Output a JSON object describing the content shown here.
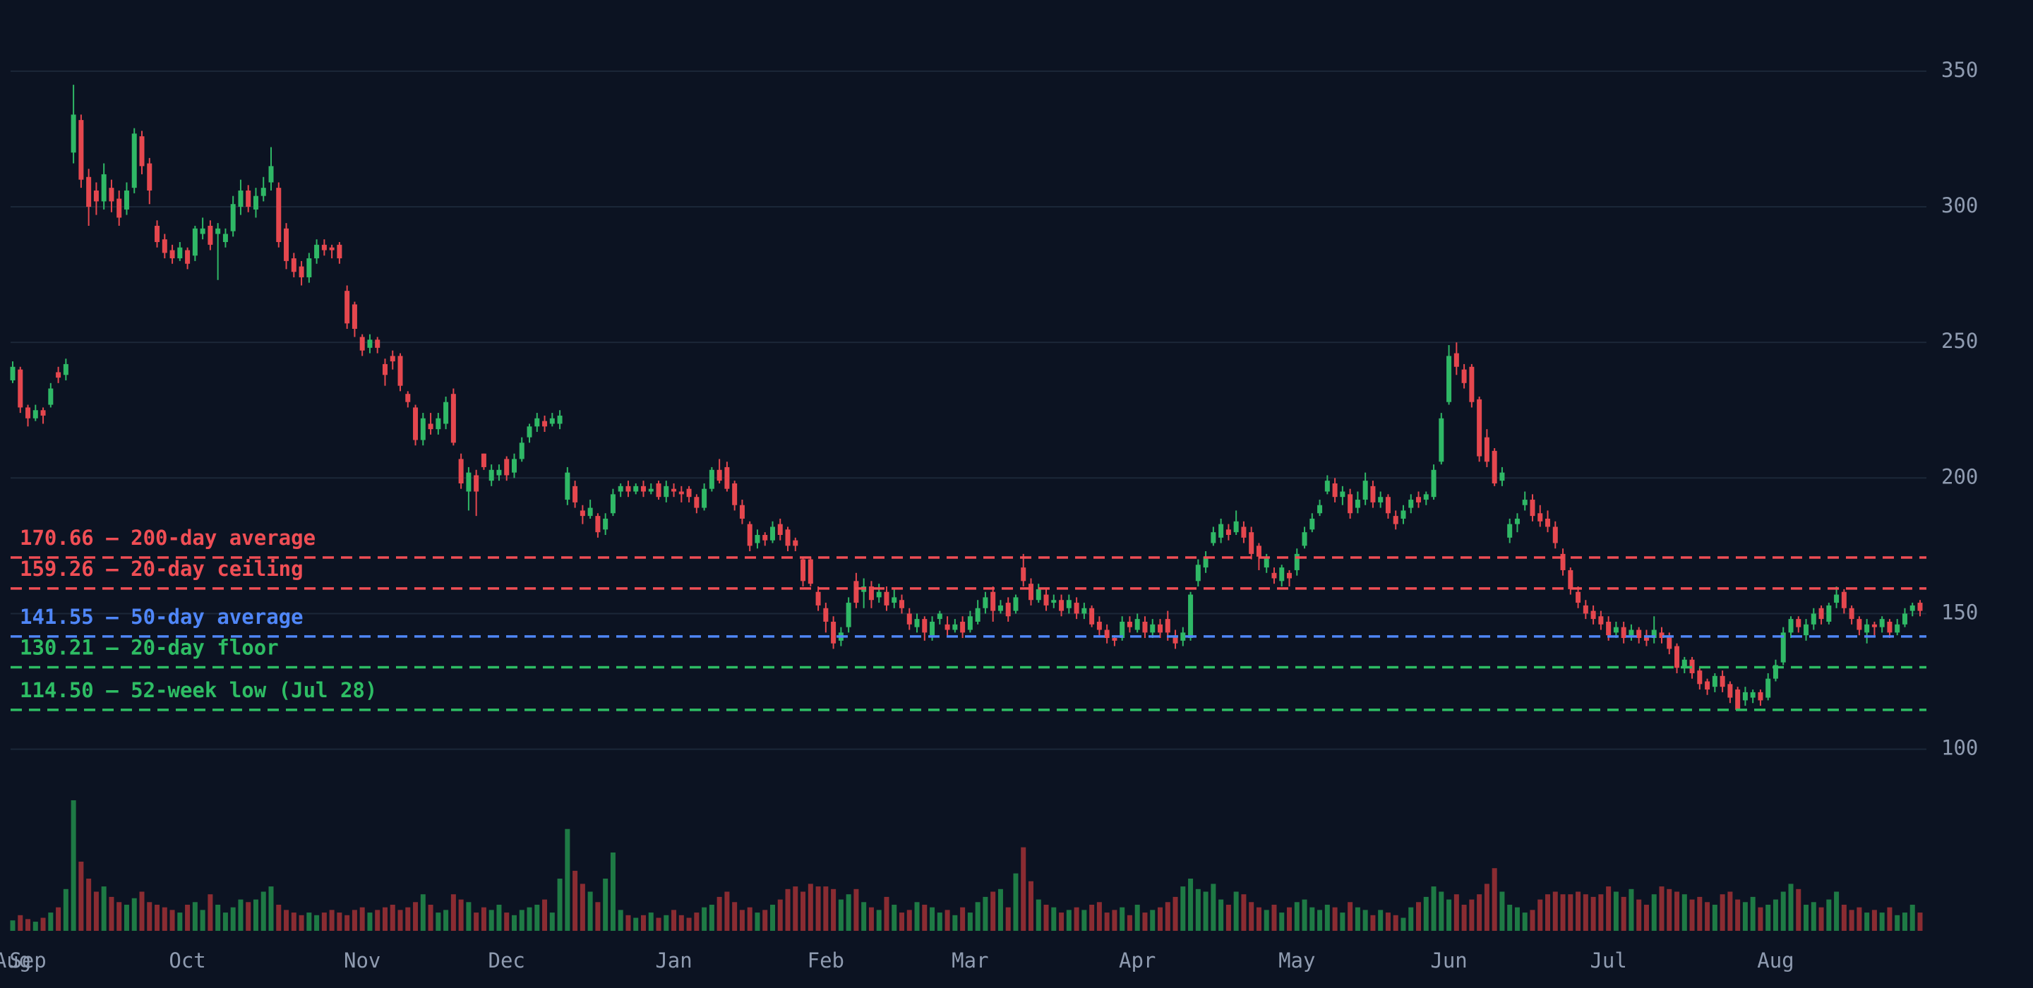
{
  "chart_data": {
    "type": "candlestick",
    "categories": [
      "Aug",
      null,
      "Sep",
      null,
      null,
      null,
      null,
      null,
      null,
      null,
      null,
      null,
      null,
      null,
      null,
      null,
      null,
      null,
      null,
      null,
      null,
      null,
      null,
      "Oct",
      null,
      null,
      null,
      null,
      null,
      null,
      null,
      null,
      null,
      null,
      null,
      null,
      null,
      null,
      null,
      null,
      null,
      null,
      null,
      null,
      null,
      null,
      "Nov",
      null,
      null,
      null,
      null,
      null,
      null,
      null,
      null,
      null,
      null,
      null,
      null,
      null,
      null,
      null,
      null,
      null,
      null,
      "Dec",
      null,
      null,
      null,
      null,
      null,
      null,
      null,
      null,
      null,
      null,
      null,
      null,
      null,
      null,
      null,
      null,
      null,
      null,
      null,
      null,
      null,
      "Jan",
      null,
      null,
      null,
      null,
      null,
      null,
      null,
      null,
      null,
      null,
      null,
      null,
      null,
      null,
      null,
      null,
      null,
      null,
      null,
      "Feb",
      null,
      null,
      null,
      null,
      null,
      null,
      null,
      null,
      null,
      null,
      null,
      null,
      null,
      null,
      null,
      null,
      null,
      null,
      "Mar",
      null,
      null,
      null,
      null,
      null,
      null,
      null,
      null,
      null,
      null,
      null,
      null,
      null,
      null,
      null,
      null,
      null,
      null,
      null,
      null,
      null,
      "Apr",
      null,
      null,
      null,
      null,
      null,
      null,
      null,
      null,
      null,
      null,
      null,
      null,
      null,
      null,
      null,
      null,
      null,
      null,
      null,
      null,
      "May",
      null,
      null,
      null,
      null,
      null,
      null,
      null,
      null,
      null,
      null,
      null,
      null,
      null,
      null,
      null,
      null,
      null,
      null,
      null,
      "Jun",
      null,
      null,
      null,
      null,
      null,
      null,
      null,
      null,
      null,
      null,
      null,
      null,
      null,
      null,
      null,
      null,
      null,
      null,
      null,
      null,
      "Jul",
      null,
      null,
      null,
      null,
      null,
      null,
      null,
      null,
      null,
      null,
      null,
      null,
      null,
      null,
      null,
      null,
      null,
      null,
      null,
      null,
      null,
      "Aug",
      null,
      null,
      null,
      null,
      null,
      null,
      null,
      null,
      null,
      null,
      null,
      null,
      null,
      null,
      null,
      null,
      null,
      null,
      null
    ],
    "open": [
      236,
      240,
      226,
      222,
      225,
      227,
      239,
      238,
      320,
      332,
      311,
      306,
      302,
      307,
      303,
      299,
      307,
      326,
      316,
      293,
      288,
      284,
      281,
      284,
      282,
      290,
      293,
      290,
      287,
      291,
      300,
      306,
      299,
      304,
      309,
      307,
      292,
      281,
      278,
      274,
      281,
      286,
      285,
      286,
      269,
      264,
      252,
      248,
      251,
      242,
      245,
      245,
      231,
      226,
      214,
      220,
      218,
      220,
      231,
      207,
      195,
      201,
      209,
      199,
      201,
      207,
      202,
      207,
      215,
      219,
      221,
      220,
      220,
      192,
      197,
      188,
      186,
      186,
      181,
      187,
      195,
      197,
      195,
      197,
      195,
      198,
      193,
      196,
      195,
      196,
      193,
      189,
      196,
      203,
      204,
      198,
      190,
      183,
      176,
      179,
      177,
      183,
      181,
      177,
      170,
      170,
      158,
      152,
      147,
      140,
      145,
      162,
      158,
      160,
      156,
      158,
      154,
      155,
      150,
      145,
      148,
      142,
      148,
      146,
      144,
      147,
      144,
      147,
      152,
      158,
      151,
      154,
      151,
      167,
      161,
      155,
      157,
      154,
      155,
      152,
      154,
      150,
      152,
      147,
      144,
      141,
      141,
      147,
      144,
      147,
      143,
      146,
      148,
      142,
      140,
      141,
      162,
      167,
      176,
      178,
      181,
      180,
      182,
      180,
      175,
      167,
      165,
      162,
      165,
      166,
      175,
      181,
      187,
      195,
      198,
      193,
      194,
      189,
      192,
      197,
      191,
      193,
      186,
      185,
      189,
      193,
      192,
      193,
      206,
      228,
      246,
      240,
      241,
      229,
      215,
      210,
      199,
      178,
      183,
      190,
      192,
      187,
      185,
      182,
      172,
      166,
      158,
      153,
      151,
      149,
      147,
      143,
      145,
      142,
      144,
      142,
      141,
      143,
      142,
      138,
      130,
      133,
      129,
      125,
      123,
      127,
      124,
      122,
      118,
      119,
      121,
      119,
      126,
      132,
      143,
      148,
      142,
      146,
      152,
      147,
      154,
      158,
      152,
      148,
      143,
      146,
      145,
      147,
      143,
      146,
      151,
      154
    ],
    "high": [
      243,
      241,
      227,
      227,
      226,
      235,
      241,
      244,
      345,
      334,
      314,
      309,
      316,
      310,
      306,
      309,
      329,
      328,
      318,
      295,
      290,
      286,
      287,
      285,
      293,
      296,
      295,
      294,
      292,
      304,
      310,
      308,
      307,
      311,
      322,
      309,
      294,
      283,
      280,
      283,
      288,
      288,
      286,
      287,
      271,
      265,
      253,
      253,
      252,
      244,
      247,
      246,
      232,
      227,
      224,
      224,
      224,
      230,
      233,
      209,
      204,
      203,
      209,
      205,
      205,
      208,
      209,
      215,
      220,
      224,
      223,
      224,
      225,
      204,
      199,
      190,
      192,
      187,
      187,
      196,
      198,
      199,
      198,
      199,
      198,
      199,
      199,
      198,
      197,
      197,
      194,
      198,
      204,
      207,
      206,
      199,
      192,
      184,
      181,
      180,
      184,
      185,
      182,
      178,
      171,
      171,
      160,
      154,
      149,
      145,
      156,
      165,
      163,
      162,
      161,
      160,
      159,
      157,
      152,
      150,
      149,
      149,
      151,
      149,
      148,
      149,
      151,
      155,
      158,
      160,
      155,
      156,
      157,
      172,
      163,
      161,
      159,
      157,
      157,
      157,
      156,
      154,
      153,
      149,
      146,
      142,
      149,
      149,
      150,
      149,
      148,
      148,
      151,
      144,
      145,
      158,
      170,
      173,
      182,
      185,
      183,
      188,
      184,
      182,
      176,
      172,
      167,
      168,
      166,
      174,
      182,
      187,
      192,
      201,
      200,
      197,
      196,
      195,
      202,
      199,
      195,
      194,
      188,
      190,
      194,
      195,
      195,
      205,
      224,
      249,
      250,
      242,
      242,
      230,
      218,
      211,
      204,
      185,
      187,
      195,
      194,
      190,
      188,
      184,
      174,
      167,
      160,
      155,
      153,
      151,
      149,
      147,
      147,
      146,
      145,
      144,
      149,
      145,
      143,
      139,
      134,
      134,
      130,
      126,
      128,
      129,
      125,
      123,
      123,
      122,
      122,
      128,
      133,
      145,
      149,
      149,
      148,
      152,
      153,
      154,
      160,
      159,
      153,
      149,
      148,
      147,
      149,
      148,
      148,
      152,
      154,
      155
    ],
    "low": [
      235,
      224,
      219,
      221,
      220,
      226,
      235,
      236,
      316,
      307,
      293,
      297,
      299,
      298,
      293,
      297,
      305,
      312,
      301,
      285,
      281,
      279,
      280,
      277,
      280,
      288,
      284,
      273,
      285,
      289,
      297,
      298,
      296,
      302,
      306,
      285,
      277,
      274,
      271,
      272,
      279,
      282,
      281,
      279,
      255,
      252,
      245,
      246,
      246,
      234,
      240,
      232,
      226,
      212,
      212,
      216,
      216,
      218,
      212,
      196,
      188,
      186,
      203,
      197,
      199,
      199,
      200,
      206,
      213,
      217,
      217,
      219,
      218,
      190,
      189,
      183,
      185,
      178,
      179,
      186,
      193,
      193,
      194,
      193,
      194,
      192,
      191,
      193,
      191,
      191,
      187,
      188,
      195,
      198,
      195,
      188,
      183,
      173,
      174,
      175,
      176,
      177,
      173,
      173,
      160,
      160,
      151,
      143,
      137,
      138,
      143,
      152,
      152,
      152,
      154,
      151,
      152,
      150,
      144,
      143,
      140,
      140,
      146,
      142,
      143,
      141,
      143,
      146,
      150,
      147,
      150,
      147,
      150,
      160,
      153,
      154,
      151,
      152,
      149,
      150,
      148,
      148,
      145,
      142,
      139,
      138,
      140,
      143,
      143,
      141,
      141,
      141,
      140,
      137,
      138,
      140,
      160,
      165,
      175,
      176,
      177,
      179,
      176,
      170,
      166,
      165,
      161,
      160,
      160,
      164,
      174,
      180,
      186,
      194,
      191,
      190,
      185,
      187,
      190,
      189,
      189,
      185,
      181,
      183,
      187,
      189,
      190,
      192,
      205,
      227,
      238,
      233,
      226,
      206,
      204,
      197,
      197,
      176,
      180,
      188,
      184,
      182,
      180,
      174,
      164,
      157,
      152,
      148,
      146,
      144,
      140,
      141,
      139,
      140,
      139,
      138,
      139,
      139,
      135,
      128,
      128,
      126,
      122,
      120,
      121,
      121,
      117,
      114.5,
      116,
      117,
      116,
      118,
      125,
      131,
      141,
      143,
      140,
      144,
      146,
      146,
      152,
      150,
      146,
      142,
      139,
      142,
      143,
      141,
      142,
      145,
      149,
      149
    ],
    "close": [
      241,
      226,
      222,
      225,
      223,
      233,
      237,
      242,
      334,
      310,
      300,
      302,
      312,
      302,
      296,
      306,
      327,
      315,
      306,
      287,
      283,
      281,
      285,
      279,
      292,
      292,
      286,
      292,
      290,
      301,
      306,
      300,
      304,
      307,
      315,
      287,
      280,
      276,
      274,
      281,
      286,
      284,
      284,
      281,
      257,
      255,
      247,
      251,
      248,
      238,
      243,
      234,
      228,
      214,
      222,
      218,
      222,
      228,
      213,
      198,
      202,
      195,
      204,
      203,
      203,
      201,
      207,
      213,
      219,
      222,
      219,
      222,
      223,
      202,
      191,
      186,
      189,
      180,
      185,
      194,
      197,
      195,
      197,
      195,
      196,
      193,
      197,
      195,
      194,
      193,
      189,
      196,
      203,
      199,
      196,
      190,
      185,
      175,
      179,
      177,
      182,
      179,
      175,
      175,
      162,
      161,
      153,
      147,
      139,
      143,
      154,
      154,
      160,
      155,
      158,
      153,
      156,
      152,
      146,
      148,
      143,
      147,
      150,
      144,
      146,
      143,
      149,
      152,
      156,
      151,
      153,
      149,
      156,
      162,
      155,
      159,
      153,
      155,
      151,
      155,
      150,
      152,
      146,
      144,
      141,
      140,
      147,
      145,
      148,
      143,
      146,
      143,
      143,
      139,
      143,
      157,
      168,
      171,
      180,
      183,
      179,
      184,
      178,
      172,
      171,
      171,
      163,
      167,
      163,
      172,
      180,
      185,
      190,
      199,
      193,
      195,
      187,
      192,
      199,
      191,
      193,
      187,
      183,
      188,
      192,
      191,
      194,
      203,
      222,
      245,
      241,
      235,
      228,
      208,
      206,
      198,
      202,
      183,
      185,
      192,
      186,
      184,
      182,
      176,
      166,
      159,
      154,
      150,
      148,
      146,
      142,
      145,
      141,
      144,
      141,
      140,
      144,
      141,
      137,
      130,
      133,
      128,
      124,
      122,
      127,
      123,
      119,
      114.5,
      121,
      121,
      118,
      126,
      131,
      143,
      148,
      145,
      146,
      150,
      148,
      153,
      157,
      152,
      148,
      144,
      146,
      145,
      148,
      143,
      146,
      150,
      153,
      151
    ],
    "volume": [
      8,
      12,
      9,
      7,
      10,
      14,
      18,
      32,
      100,
      53,
      40,
      30,
      34,
      26,
      22,
      20,
      25,
      30,
      22,
      20,
      18,
      16,
      14,
      20,
      22,
      16,
      28,
      20,
      14,
      18,
      24,
      22,
      24,
      30,
      34,
      20,
      16,
      14,
      12,
      14,
      12,
      14,
      16,
      14,
      12,
      16,
      18,
      14,
      16,
      18,
      20,
      16,
      18,
      22,
      28,
      20,
      14,
      16,
      28,
      24,
      22,
      14,
      18,
      16,
      20,
      14,
      12,
      16,
      18,
      20,
      24,
      14,
      40,
      78,
      46,
      36,
      30,
      22,
      40,
      60,
      16,
      12,
      10,
      12,
      14,
      10,
      12,
      16,
      12,
      10,
      14,
      18,
      20,
      26,
      30,
      22,
      16,
      18,
      14,
      16,
      20,
      24,
      32,
      34,
      30,
      36,
      34,
      34,
      32,
      24,
      28,
      32,
      22,
      18,
      16,
      26,
      20,
      14,
      16,
      22,
      20,
      18,
      14,
      16,
      12,
      18,
      14,
      22,
      26,
      30,
      32,
      18,
      44,
      64,
      38,
      24,
      20,
      18,
      14,
      16,
      18,
      16,
      20,
      22,
      14,
      16,
      18,
      12,
      20,
      14,
      16,
      18,
      22,
      26,
      34,
      40,
      32,
      30,
      36,
      24,
      20,
      30,
      28,
      22,
      18,
      16,
      20,
      14,
      18,
      22,
      24,
      18,
      16,
      20,
      18,
      14,
      22,
      18,
      16,
      12,
      16,
      14,
      12,
      10,
      18,
      22,
      26,
      34,
      30,
      24,
      28,
      20,
      24,
      28,
      36,
      48,
      30,
      20,
      18,
      14,
      16,
      24,
      28,
      30,
      28,
      28,
      30,
      28,
      26,
      28,
      34,
      30,
      26,
      32,
      24,
      20,
      28,
      34,
      32,
      30,
      28,
      24,
      26,
      22,
      20,
      28,
      30,
      24,
      22,
      26,
      18,
      20,
      24,
      30,
      36,
      32,
      20,
      22,
      18,
      24,
      30,
      20,
      16,
      18,
      14,
      16,
      14,
      18,
      12,
      14,
      20,
      14
    ],
    "up_color": "#2fb866",
    "down_color": "#e5474e",
    "volume_up_color": "#1e7a45",
    "volume_down_color": "#8a2c32",
    "ylim": [
      90,
      376
    ],
    "yticks": [
      100,
      150,
      200,
      250,
      300,
      350
    ],
    "grid": true,
    "lines": [
      {
        "value": 170.66,
        "label": "170.66 — 200-day average",
        "color": "#f04e55"
      },
      {
        "value": 159.26,
        "label": "159.26 — 20-day ceiling",
        "color": "#f04e55"
      },
      {
        "value": 141.55,
        "label": "141.55 — 50-day average",
        "color": "#4f86f7"
      },
      {
        "value": 130.21,
        "label": "130.21 — 20-day floor",
        "color": "#2ebd64"
      },
      {
        "value": 114.5,
        "label": "114.50 — 52-week low (Jul 28)",
        "color": "#2ebd64"
      }
    ]
  }
}
